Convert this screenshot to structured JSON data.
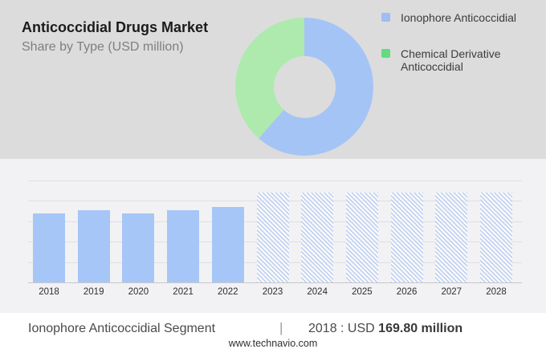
{
  "palette": {
    "band_gray": "#dcdcdd",
    "band_light": "#f2f2f4",
    "footer_bg": "#ffffff",
    "bar_blue": "#a6c6f7",
    "hatch_line": "#bacdf0",
    "gridline": "#dfdfe1",
    "axis_line": "#c8c8cb",
    "title_text": "#1b1b1b",
    "subtitle_text": "#7f7f7f",
    "legend_text": "#3c3c3c",
    "year_text": "#2e2e2e",
    "footer_text": "#4a4a4a",
    "footer_value_text": "#383838",
    "divider_color": "#9b9b9b",
    "website_text": "#2f2f2f"
  },
  "header": {
    "title": "Anticoccidial Drugs Market",
    "subtitle": "Share by Type (USD million)"
  },
  "legend": {
    "items": [
      {
        "label": "Ionophore Anticoccidial",
        "color": "#9dbdf3"
      },
      {
        "label": "Chemical Derivative Anticoccidial",
        "color": "#64db7e"
      }
    ]
  },
  "chart_data": [
    {
      "type": "pie",
      "donut": true,
      "title": "Share by Type (USD million)",
      "slices": [
        {
          "label": "Ionophore Anticoccidial",
          "share_pct": 61.5,
          "color": "#a5c4f6"
        },
        {
          "label": "Chemical Derivative Anticoccidial",
          "share_pct": 38.5,
          "color": "#aeeaae"
        }
      ],
      "value_labels_shown": false,
      "legend_position": "right"
    },
    {
      "type": "bar",
      "title": "Ionophore Anticoccidial Segment (USD million)",
      "categories": [
        "2018",
        "2019",
        "2020",
        "2021",
        "2022",
        "2023",
        "2024",
        "2025",
        "2026",
        "2027",
        "2028"
      ],
      "bars": [
        {
          "year": "2018",
          "value": 169.8,
          "kind": "actual"
        },
        {
          "year": "2019",
          "value": 177.3,
          "kind": "actual"
        },
        {
          "year": "2020",
          "value": 170.1,
          "kind": "actual"
        },
        {
          "year": "2021",
          "value": 176.9,
          "kind": "actual"
        },
        {
          "year": "2022",
          "value": 185.9,
          "kind": "actual"
        },
        {
          "year": "2023",
          "value": 220,
          "kind": "forecast"
        },
        {
          "year": "2024",
          "value": 220,
          "kind": "forecast"
        },
        {
          "year": "2025",
          "value": 220,
          "kind": "forecast"
        },
        {
          "year": "2026",
          "value": 220,
          "kind": "forecast"
        },
        {
          "year": "2027",
          "value": 220,
          "kind": "forecast"
        },
        {
          "year": "2028",
          "value": 220,
          "kind": "forecast"
        }
      ],
      "ylim": [
        0,
        250
      ],
      "gridline_step": 50,
      "y_tick_labels_shown": false,
      "grid": true,
      "forecast_note": "2023-2028 drawn as equal-height diagonal-hatched placeholder bars",
      "known_value": {
        "year": "2018",
        "value_text": "USD 169.80 million"
      }
    }
  ],
  "footer": {
    "segment_label": "Ionophore Anticoccidial Segment",
    "divider": "|",
    "stat_prefix": "2018 : USD",
    "stat_value": "169.80 million",
    "website": "www.technavio.com"
  }
}
